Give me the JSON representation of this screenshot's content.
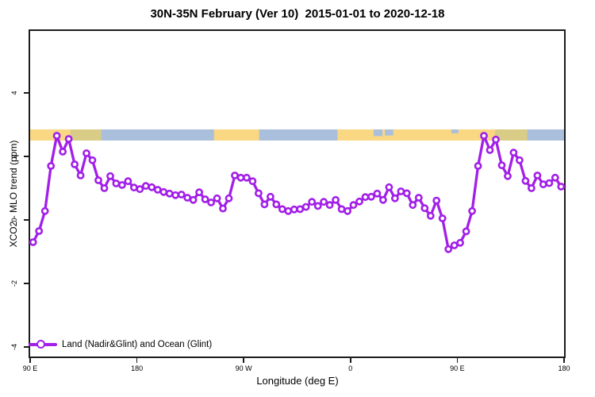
{
  "title": "30N-35N February (Ver 10)  2015-01-01 to 2020-12-18",
  "chart_data": {
    "type": "line",
    "title": "30N-35N February (Ver 10)  2015-01-01 to 2020-12-18",
    "xlabel": "Longitude (deg E)",
    "ylabel": "XCO2 - MLO trend (ppm)",
    "xlim": [
      90,
      540
    ],
    "ylim": [
      -4.3,
      5.95
    ],
    "grid": "off",
    "legend_position": "bottom-left-inside",
    "x_ticks": [
      {
        "lon": 90,
        "label": "90 E"
      },
      {
        "lon": 180,
        "label": "180"
      },
      {
        "lon": 270,
        "label": "90 W"
      },
      {
        "lon": 360,
        "label": "0"
      },
      {
        "lon": 450,
        "label": "90 E"
      },
      {
        "lon": 540,
        "label": "180"
      }
    ],
    "y_ticks": [
      {
        "v": 4,
        "label": "4"
      },
      {
        "v": 2,
        "label": "2"
      },
      {
        "v": 0,
        "label": "0"
      },
      {
        "v": -2,
        "label": "-2"
      },
      {
        "v": -4,
        "label": "-4"
      }
    ],
    "colors": {
      "line": "#A21FE8",
      "marker_fill": "#ffffff",
      "ocean": "#AABFDB",
      "land": "#FAD783",
      "mixed_land": "#D8CC86",
      "axis": "#1c1c1c"
    },
    "map_band": {
      "comment": "land/ocean strip of latitude band 30N-35N drawn at y 2.5-2.85 ppm",
      "v_top": 2.85,
      "v_bottom": 2.5,
      "land_segments_lon": [
        [
          90,
          124
        ],
        [
          245,
          283
        ],
        [
          349,
          482
        ]
      ],
      "mixed_segments_lon": [
        [
          124,
          150
        ],
        [
          482,
          509
        ]
      ],
      "ocean_overlays_lon": [
        {
          "from": 379.5,
          "to": 387,
          "frac": 0.6
        },
        {
          "from": 389,
          "to": 396,
          "frac": 0.55
        },
        {
          "from": 445,
          "to": 451,
          "frac": 0.35
        }
      ]
    },
    "series": [
      {
        "name": "Land (Nadir&Glint) and Ocean (Glint)",
        "x": [
          92.5,
          97.5,
          102.5,
          107.5,
          112.5,
          117.5,
          122.5,
          127.5,
          132.5,
          137.5,
          142.5,
          147.5,
          152.5,
          157.5,
          162.5,
          167.5,
          172.5,
          177.5,
          182.5,
          187.5,
          192.5,
          197.5,
          202.5,
          207.5,
          212.5,
          217.5,
          222.5,
          227.5,
          232.5,
          237.5,
          242.5,
          247.5,
          252.5,
          257.5,
          262.5,
          267.5,
          272.5,
          277.5,
          282.5,
          287.5,
          292.5,
          297.5,
          302.5,
          307.5,
          312.5,
          317.5,
          322.5,
          327.5,
          332.5,
          337.5,
          342.5,
          347.5,
          352.5,
          357.5,
          362.5,
          367.5,
          372.5,
          377.5,
          382.5,
          387.5,
          392.5,
          397.5,
          402.5,
          407.5,
          412.5,
          417.5,
          422.5,
          427.5,
          432.5,
          437.5,
          442.5,
          447.5,
          452.5,
          457.5,
          462.5,
          467.5,
          472.5,
          477.5,
          482.5,
          487.5,
          492.5,
          497.5,
          502.5,
          507.5,
          512.5,
          517.5,
          522.5,
          527.5,
          532.5,
          537.5
        ],
        "y": [
          -0.7,
          -0.35,
          0.28,
          1.7,
          2.65,
          2.15,
          2.55,
          1.75,
          1.4,
          2.1,
          1.88,
          1.25,
          1.0,
          1.38,
          1.15,
          1.1,
          1.22,
          1.02,
          0.97,
          1.07,
          1.03,
          0.95,
          0.88,
          0.83,
          0.78,
          0.8,
          0.7,
          0.63,
          0.87,
          0.65,
          0.55,
          0.68,
          0.36,
          0.68,
          1.4,
          1.33,
          1.33,
          1.22,
          0.84,
          0.49,
          0.73,
          0.49,
          0.34,
          0.28,
          0.33,
          0.34,
          0.41,
          0.57,
          0.44,
          0.57,
          0.47,
          0.63,
          0.34,
          0.28,
          0.47,
          0.58,
          0.72,
          0.73,
          0.83,
          0.63,
          1.03,
          0.68,
          0.9,
          0.84,
          0.47,
          0.7,
          0.37,
          0.13,
          0.61,
          0.05,
          -0.92,
          -0.8,
          -0.72,
          -0.36,
          0.28,
          1.7,
          2.65,
          2.2,
          2.53,
          1.72,
          1.38,
          2.12,
          1.88,
          1.23,
          1.0,
          1.4,
          1.12,
          1.16,
          1.33,
          1.05
        ]
      }
    ],
    "legend": {
      "label": "Land (Nadir&Glint) and Ocean (Glint)"
    }
  }
}
